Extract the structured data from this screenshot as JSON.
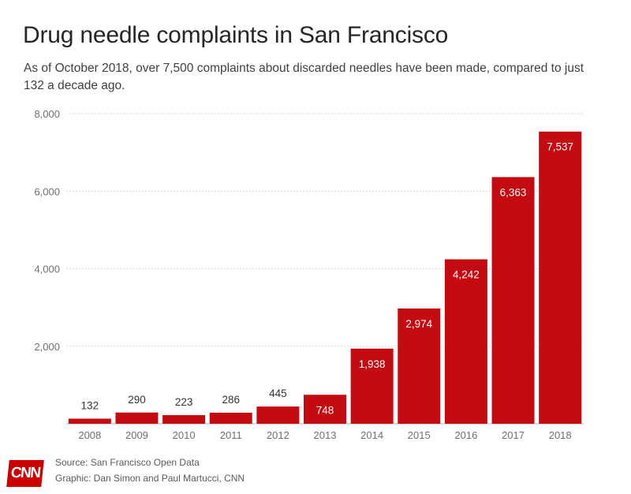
{
  "header": {
    "title": "Drug needle complaints in San Francisco",
    "subtitle": "As of October 2018, over 7,500 complaints about discarded needles have been made, compared to just 132 a decade ago."
  },
  "chart_data": {
    "type": "bar",
    "title": "Drug needle complaints in San Francisco",
    "subtitle": "As of October 2018, over 7,500 complaints about discarded needles have been made, compared to just 132 a decade ago.",
    "categories": [
      "2008",
      "2009",
      "2010",
      "2011",
      "2012",
      "2013",
      "2014",
      "2015",
      "2016",
      "2017",
      "2018"
    ],
    "values": [
      132,
      290,
      223,
      286,
      445,
      748,
      1938,
      2974,
      4242,
      6363,
      7537
    ],
    "value_labels": [
      "132",
      "290",
      "223",
      "286",
      "445",
      "748",
      "1,938",
      "2,974",
      "4,242",
      "6,363",
      "7,537"
    ],
    "ylim": [
      0,
      8000
    ],
    "yticks": [
      2000,
      4000,
      6000,
      8000
    ],
    "ytick_labels": [
      "2,000",
      "4,000",
      "6,000",
      "8,000"
    ],
    "xlabel": "",
    "ylabel": "",
    "grid": true,
    "bar_color": "#c40b12",
    "label_inside_threshold": 700
  },
  "footer": {
    "source": "Source: San Francisco Open Data",
    "credit": "Graphic: Dan Simon and Paul Martucci, CNN",
    "logo_text": "CNN"
  },
  "colors": {
    "bar": "#c40b12",
    "grid": "#d9d9d9",
    "axis_text": "#707070",
    "label_outside": "#333333",
    "label_inside": "#ffffff",
    "logo_bg": "#cc0000"
  }
}
